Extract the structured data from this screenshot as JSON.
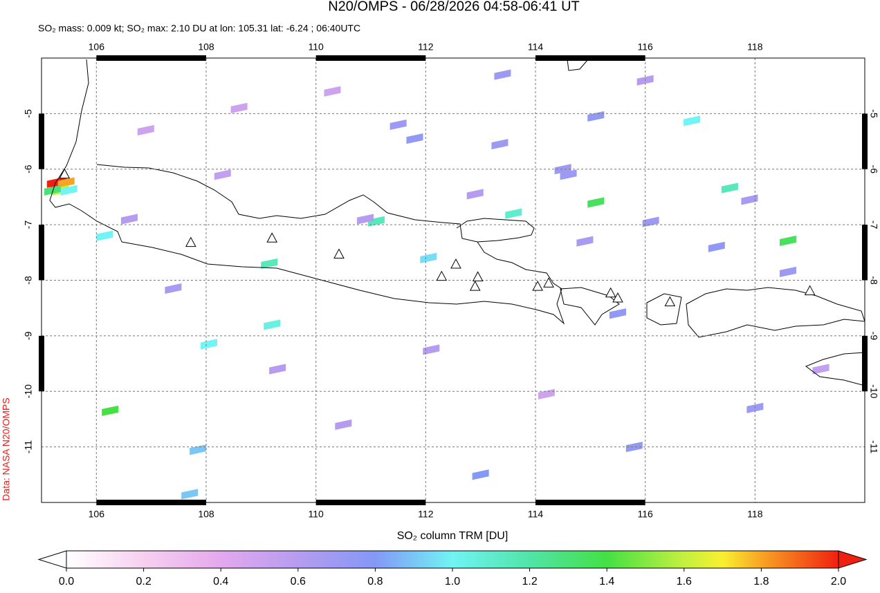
{
  "header": {
    "title": "N20/OMPS - 06/28/2026 04:58-06:41 UT",
    "subtitle": "SO₂ mass: 0.009 kt; SO₂ max: 2.10 DU at lon: 105.31 lat: -6.24 ; 06:40UTC",
    "credit": "Data: NASA N20/OMPS"
  },
  "map": {
    "xlim": [
      105,
      120
    ],
    "ylim": [
      -12,
      -4
    ],
    "xticks": [
      106,
      108,
      110,
      112,
      114,
      116,
      118
    ],
    "yticks": [
      -5,
      -6,
      -7,
      -8,
      -9,
      -10,
      -11
    ],
    "grid": true,
    "pixels": [
      {
        "lon": 105.25,
        "lat": -6.24,
        "value": 2.1
      },
      {
        "lon": 105.31,
        "lat": -6.24,
        "value": 2.1
      },
      {
        "lon": 105.45,
        "lat": -6.24,
        "value": 1.8
      },
      {
        "lon": 105.35,
        "lat": -6.38,
        "value": 1.6
      },
      {
        "lon": 105.5,
        "lat": -6.38,
        "value": 1.0
      },
      {
        "lon": 105.2,
        "lat": -6.38,
        "value": 1.3
      },
      {
        "lon": 117.54,
        "lat": -6.34,
        "value": 1.15
      },
      {
        "lon": 115.1,
        "lat": -6.6,
        "value": 1.35
      },
      {
        "lon": 113.6,
        "lat": -6.8,
        "value": 1.1
      },
      {
        "lon": 111.1,
        "lat": -6.94,
        "value": 1.15
      },
      {
        "lon": 118.6,
        "lat": -7.29,
        "value": 1.35
      },
      {
        "lon": 106.25,
        "lat": -10.35,
        "value": 1.4
      },
      {
        "lon": 109.15,
        "lat": -7.7,
        "value": 1.15
      },
      {
        "lon": 109.2,
        "lat": -8.8,
        "value": 1.05
      },
      {
        "lon": 108.05,
        "lat": -9.15,
        "value": 1.0
      },
      {
        "lon": 116.85,
        "lat": -5.13,
        "value": 1.0
      },
      {
        "lon": 106.15,
        "lat": -7.2,
        "value": 1.0
      },
      {
        "lon": 112.05,
        "lat": -7.6,
        "value": 0.95
      },
      {
        "lon": 107.85,
        "lat": -11.05,
        "value": 0.9
      },
      {
        "lon": 107.7,
        "lat": -11.85,
        "value": 0.9
      },
      {
        "lon": 113.35,
        "lat": -5.55,
        "value": 0.7
      },
      {
        "lon": 115.1,
        "lat": -5.05,
        "value": 0.75
      },
      {
        "lon": 114.5,
        "lat": -6.0,
        "value": 0.7
      },
      {
        "lon": 114.6,
        "lat": -6.1,
        "value": 0.7
      },
      {
        "lon": 111.8,
        "lat": -5.45,
        "value": 0.75
      },
      {
        "lon": 111.5,
        "lat": -5.2,
        "value": 0.7
      },
      {
        "lon": 116.1,
        "lat": -6.95,
        "value": 0.7
      },
      {
        "lon": 117.3,
        "lat": -7.4,
        "value": 0.75
      },
      {
        "lon": 118.6,
        "lat": -7.85,
        "value": 0.7
      },
      {
        "lon": 115.5,
        "lat": -8.6,
        "value": 0.75
      },
      {
        "lon": 115.8,
        "lat": -11.0,
        "value": 0.75
      },
      {
        "lon": 113.0,
        "lat": -11.5,
        "value": 0.8
      },
      {
        "lon": 118.0,
        "lat": -10.3,
        "value": 0.7
      },
      {
        "lon": 112.1,
        "lat": -9.25,
        "value": 0.6
      },
      {
        "lon": 110.5,
        "lat": -10.6,
        "value": 0.6
      },
      {
        "lon": 109.3,
        "lat": -9.6,
        "value": 0.6
      },
      {
        "lon": 107.4,
        "lat": -8.15,
        "value": 0.65
      },
      {
        "lon": 106.6,
        "lat": -6.9,
        "value": 0.6
      },
      {
        "lon": 110.9,
        "lat": -6.9,
        "value": 0.6
      },
      {
        "lon": 112.9,
        "lat": -6.45,
        "value": 0.6
      },
      {
        "lon": 114.9,
        "lat": -7.3,
        "value": 0.65
      },
      {
        "lon": 117.9,
        "lat": -6.55,
        "value": 0.65
      },
      {
        "lon": 108.3,
        "lat": -6.1,
        "value": 0.55
      },
      {
        "lon": 110.3,
        "lat": -4.6,
        "value": 0.5
      },
      {
        "lon": 116.0,
        "lat": -4.4,
        "value": 0.6
      },
      {
        "lon": 113.4,
        "lat": -4.3,
        "value": 0.7
      },
      {
        "lon": 106.9,
        "lat": -5.3,
        "value": 0.5
      },
      {
        "lon": 108.6,
        "lat": -4.9,
        "value": 0.5
      },
      {
        "lon": 119.2,
        "lat": -9.6,
        "value": 0.55
      },
      {
        "lon": 114.2,
        "lat": -10.05,
        "value": 0.5
      }
    ],
    "volcanoes": [
      {
        "lon": 105.42,
        "lat": -6.1
      },
      {
        "lon": 107.72,
        "lat": -7.33
      },
      {
        "lon": 109.2,
        "lat": -7.25
      },
      {
        "lon": 110.42,
        "lat": -7.54
      },
      {
        "lon": 112.29,
        "lat": -7.94
      },
      {
        "lon": 112.55,
        "lat": -7.72
      },
      {
        "lon": 112.95,
        "lat": -7.95
      },
      {
        "lon": 112.9,
        "lat": -8.12
      },
      {
        "lon": 114.04,
        "lat": -8.12
      },
      {
        "lon": 114.24,
        "lat": -8.06
      },
      {
        "lon": 115.37,
        "lat": -8.24
      },
      {
        "lon": 115.5,
        "lat": -8.33
      },
      {
        "lon": 116.45,
        "lat": -8.4
      },
      {
        "lon": 119.0,
        "lat": -8.2
      }
    ]
  },
  "colorbar": {
    "label": "SO₂ column TRM [DU]",
    "lim": [
      0,
      2
    ],
    "ticks": [
      {
        "value": 0,
        "label": "0.0"
      },
      0.2,
      0.4,
      0.6,
      0.8,
      {
        "value": 1,
        "label": "1.0"
      },
      1.2,
      1.4,
      1.6,
      1.8,
      {
        "value": 2,
        "label": "2.0"
      }
    ],
    "colormap": [
      [
        0,
        "#ffffff"
      ],
      [
        0.2,
        "#f7d0f0"
      ],
      [
        0.4,
        "#e4a8ee"
      ],
      [
        0.6,
        "#b69cf0"
      ],
      [
        0.8,
        "#8498f6"
      ],
      [
        1.0,
        "#70f4f4"
      ],
      [
        1.2,
        "#50e4a8"
      ],
      [
        1.4,
        "#44e044"
      ],
      [
        1.6,
        "#c4f040"
      ],
      [
        1.7,
        "#f8f030"
      ],
      [
        1.8,
        "#f8a424"
      ],
      [
        2.0,
        "#f02010"
      ]
    ]
  }
}
